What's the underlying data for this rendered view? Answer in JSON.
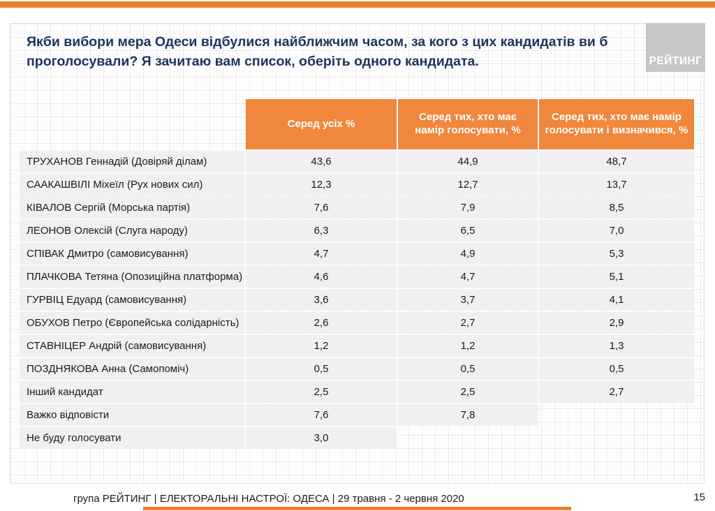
{
  "colors": {
    "orange": "#ED7D31",
    "header_orange": "#F0873C",
    "row_bg": "#F0F0F0",
    "logo_bg": "#C7C7C7",
    "title_color": "#1C355E"
  },
  "title": "Якби вибори мера Одеси відбулися найближчим часом, за кого з цих кандидатів ви б проголосували? Я зачитаю вам список, оберіть одного кандидата.",
  "logo": {
    "text": "РЕЙТИНГ"
  },
  "table": {
    "columns": [
      "Серед усіх %",
      "Серед тих, хто має намір голосувати, %",
      "Серед тих, хто має намір голосувати і визначився, %"
    ],
    "rows": [
      {
        "label": "ТРУХАНОВ Геннадій (Довіряй ділам)",
        "values": [
          "43,6",
          "44,9",
          "48,7"
        ]
      },
      {
        "label": "СААКАШВІЛІ Міхеїл  (Рух нових сил)",
        "values": [
          "12,3",
          "12,7",
          "13,7"
        ]
      },
      {
        "label": "КІВАЛОВ Сергій (Морська партія)",
        "values": [
          "7,6",
          "7,9",
          "8,5"
        ]
      },
      {
        "label": "ЛЕОНОВ Олексій (Слуга народу)",
        "values": [
          "6,3",
          "6,5",
          "7,0"
        ]
      },
      {
        "label": "СПІВАК Дмитро (самовисування)",
        "values": [
          "4,7",
          "4,9",
          "5,3"
        ]
      },
      {
        "label": "ПЛАЧКОВА Тетяна (Опозиційна платформа)",
        "values": [
          "4,6",
          "4,7",
          "5,1"
        ]
      },
      {
        "label": "ГУРВІЦ Едуард (самовисування)",
        "values": [
          "3,6",
          "3,7",
          "4,1"
        ]
      },
      {
        "label": "ОБУХОВ Петро (Європейська солідарність)",
        "values": [
          "2,6",
          "2,7",
          "2,9"
        ]
      },
      {
        "label": "СТАВНІЦЕР Андрій (самовисування)",
        "values": [
          "1,2",
          "1,2",
          "1,3"
        ]
      },
      {
        "label": "ПОЗДНЯКОВА Анна (Самопоміч)",
        "values": [
          "0,5",
          "0,5",
          "0,5"
        ]
      },
      {
        "label": "Інший кандидат",
        "values": [
          "2,5",
          "2,5",
          "2,7"
        ]
      },
      {
        "label": "Важко відповісти",
        "values": [
          "7,6",
          "7,8",
          null
        ]
      },
      {
        "label": "Не буду голосувати",
        "values": [
          "3,0",
          null,
          null
        ]
      }
    ]
  },
  "footer": {
    "text": "група РЕЙТИНГ  |  ЕЛЕКТОРАЛЬНІ НАСТРОЇ: ОДЕСА | 29 травня - 2 червня 2020",
    "page": "15"
  },
  "chart_data": {
    "type": "table",
    "title": "Якби вибори мера Одеси відбулися найближчим часом, за кого з цих кандидатів ви б проголосували? Я зачитаю вам список, оберіть одного кандидата.",
    "columns": [
      "",
      "Серед усіх %",
      "Серед тих, хто має намір голосувати, %",
      "Серед тих, хто має намір голосувати і визначився, %"
    ],
    "rows": [
      [
        "ТРУХАНОВ Геннадій (Довіряй ділам)",
        43.6,
        44.9,
        48.7
      ],
      [
        "СААКАШВІЛІ Міхеїл (Рух нових сил)",
        12.3,
        12.7,
        13.7
      ],
      [
        "КІВАЛОВ Сергій (Морська партія)",
        7.6,
        7.9,
        8.5
      ],
      [
        "ЛЕОНОВ Олексій (Слуга народу)",
        6.3,
        6.5,
        7.0
      ],
      [
        "СПІВАК Дмитро (самовисування)",
        4.7,
        4.9,
        5.3
      ],
      [
        "ПЛАЧКОВА Тетяна (Опозиційна платформа)",
        4.6,
        4.7,
        5.1
      ],
      [
        "ГУРВІЦ Едуард (самовисування)",
        3.6,
        3.7,
        4.1
      ],
      [
        "ОБУХОВ Петро (Європейська солідарність)",
        2.6,
        2.7,
        2.9
      ],
      [
        "СТАВНІЦЕР Андрій (самовисування)",
        1.2,
        1.2,
        1.3
      ],
      [
        "ПОЗДНЯКОВА Анна (Самопоміч)",
        0.5,
        0.5,
        0.5
      ],
      [
        "Інший кандидат",
        2.5,
        2.5,
        2.7
      ],
      [
        "Важко відповісти",
        7.6,
        7.8,
        null
      ],
      [
        "Не буду голосувати",
        3.0,
        null,
        null
      ]
    ]
  }
}
